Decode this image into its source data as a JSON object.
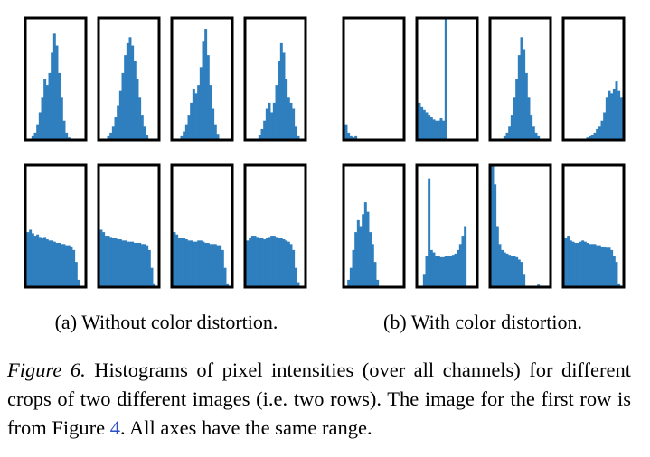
{
  "figure": {
    "ylim": [
      0,
      1
    ],
    "subfigures": [
      {
        "caption": "(a) Without color distortion.",
        "histograms": [
          [
            0,
            0,
            0.02,
            0.05,
            0.12,
            0.22,
            0.35,
            0.5,
            0.45,
            0.55,
            0.72,
            0.88,
            0.78,
            0.55,
            0.35,
            0.15,
            0.05,
            0.01,
            0,
            0,
            0,
            0,
            0,
            0
          ],
          [
            0,
            0,
            0,
            0.02,
            0.05,
            0.1,
            0.18,
            0.28,
            0.4,
            0.55,
            0.7,
            0.8,
            0.85,
            0.78,
            0.65,
            0.5,
            0.35,
            0.2,
            0.1,
            0.03,
            0,
            0,
            0,
            0
          ],
          [
            0,
            0,
            0,
            0.02,
            0.06,
            0.12,
            0.2,
            0.3,
            0.42,
            0.38,
            0.45,
            0.6,
            0.82,
            0.92,
            0.7,
            0.45,
            0.25,
            0.12,
            0.04,
            0,
            0,
            0,
            0,
            0
          ],
          [
            0,
            0,
            0,
            0,
            0,
            0.03,
            0.08,
            0.15,
            0.25,
            0.3,
            0.22,
            0.3,
            0.45,
            0.65,
            0.8,
            0.72,
            0.5,
            0.35,
            0.3,
            0.25,
            0.1,
            0.02,
            0,
            0
          ],
          [
            0.45,
            0.47,
            0.44,
            0.42,
            0.43,
            0.41,
            0.4,
            0.41,
            0.39,
            0.38,
            0.38,
            0.37,
            0.36,
            0.36,
            0.35,
            0.35,
            0.34,
            0.34,
            0.33,
            0.3,
            0.2,
            0.05,
            0,
            0
          ],
          [
            0.47,
            0.45,
            0.42,
            0.42,
            0.41,
            0.4,
            0.4,
            0.39,
            0.39,
            0.38,
            0.38,
            0.37,
            0.37,
            0.37,
            0.36,
            0.36,
            0.36,
            0.35,
            0.35,
            0.34,
            0.3,
            0.15,
            0.02,
            0
          ],
          [
            0.45,
            0.43,
            0.4,
            0.4,
            0.4,
            0.39,
            0.38,
            0.38,
            0.37,
            0.37,
            0.38,
            0.38,
            0.37,
            0.36,
            0.36,
            0.35,
            0.35,
            0.35,
            0.34,
            0.34,
            0.3,
            0.15,
            0.02,
            0
          ],
          [
            0.38,
            0.4,
            0.42,
            0.42,
            0.41,
            0.4,
            0.4,
            0.39,
            0.4,
            0.41,
            0.42,
            0.42,
            0.41,
            0.4,
            0.4,
            0.39,
            0.38,
            0.37,
            0.35,
            0.3,
            0.15,
            0.03,
            0,
            0
          ]
        ]
      },
      {
        "caption": "(b) With color distortion.",
        "histograms": [
          [
            0.12,
            0.05,
            0.02,
            0.01,
            0.02,
            0,
            0,
            0,
            0,
            0,
            0,
            0,
            0,
            0,
            0,
            0,
            0,
            0,
            0,
            0,
            0,
            0,
            0,
            0
          ],
          [
            0.3,
            0.27,
            0.24,
            0.22,
            0.2,
            0.18,
            0.16,
            0.15,
            0.15,
            0.17,
            0.15,
            1.0,
            0,
            0,
            0,
            0,
            0,
            0,
            0,
            0,
            0,
            0,
            0,
            0
          ],
          [
            0,
            0,
            0,
            0,
            0,
            0.02,
            0.05,
            0.1,
            0.2,
            0.35,
            0.5,
            0.7,
            0.85,
            0.75,
            0.55,
            0.35,
            0.2,
            0.1,
            0.05,
            0.02,
            0,
            0,
            0,
            0
          ],
          [
            0,
            0,
            0,
            0,
            0,
            0,
            0,
            0,
            0,
            0.01,
            0.02,
            0.03,
            0.05,
            0.08,
            0.1,
            0.15,
            0.22,
            0.35,
            0.4,
            0.38,
            0.42,
            0.48,
            0.4,
            0.35
          ],
          [
            0,
            0.05,
            0.15,
            0.3,
            0.45,
            0.55,
            0.5,
            0.6,
            0.7,
            0.62,
            0.45,
            0.35,
            0.2,
            0.05,
            0,
            0,
            0,
            0,
            0,
            0,
            0,
            0,
            0,
            0
          ],
          [
            0,
            0,
            0.1,
            0.25,
            0.9,
            0.3,
            0.28,
            0.25,
            0.25,
            0.24,
            0.24,
            0.25,
            0.25,
            0.25,
            0.26,
            0.27,
            0.3,
            0.35,
            0.42,
            0.5,
            0,
            0,
            0,
            0
          ],
          [
            1.0,
            0.85,
            0.5,
            0.35,
            0.3,
            0.28,
            0.27,
            0.26,
            0.25,
            0.25,
            0.24,
            0.22,
            0.2,
            0.1,
            0,
            0,
            0,
            0,
            0,
            0.01,
            0,
            0,
            0,
            0
          ],
          [
            0.4,
            0.42,
            0.38,
            0.37,
            0.36,
            0.36,
            0.37,
            0.38,
            0.37,
            0.36,
            0.35,
            0.35,
            0.35,
            0.34,
            0.34,
            0.33,
            0.33,
            0.32,
            0.32,
            0.3,
            0.25,
            0.2,
            0.02,
            0
          ]
        ]
      }
    ]
  },
  "caption": {
    "label": "Figure 6.",
    "text": " Histograms of pixel intensities (over all channels) for different crops of two different images (i.e. two rows). The image for the first row is from Figure ",
    "ref": "4",
    "text_end": ". All axes have the same range."
  }
}
